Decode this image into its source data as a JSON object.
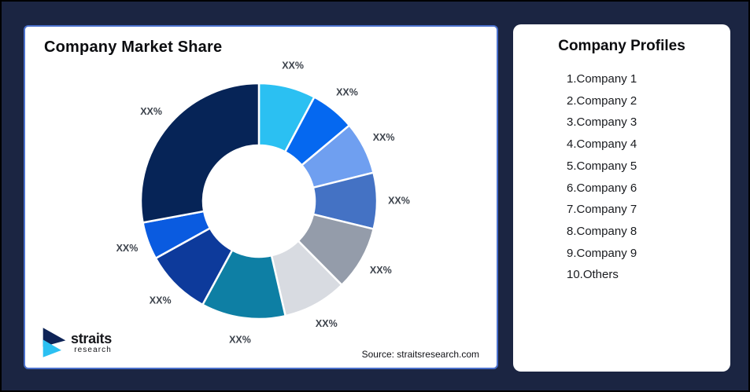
{
  "stage": {
    "background": "#1B2542",
    "outer_border_color": "#000000"
  },
  "chart_card": {
    "border_color": "#4A70CC",
    "title": "Company Market Share",
    "source_note": "Source: straitsresearch.com",
    "logo": {
      "brand": "straits",
      "brand_sub": "research",
      "icon": "straits-logo-chevrons-icon",
      "icon_colors": {
        "top_chevron": "#0E2356",
        "bottom_chevron": "#2BC0F2"
      }
    }
  },
  "chart_data": {
    "type": "pie",
    "subtype": "donut",
    "title": "Company Market Share",
    "direction": "clockwise",
    "start_angle_deg": 0,
    "inner_radius_ratio": 0.47,
    "data_label_text": "XX%",
    "note": "all slice value labels are placeholder text XX%; percent_est estimated from arc angles",
    "slices": [
      {
        "name": "Company 1",
        "label": "XX%",
        "angle_deg": 28.0,
        "percent_est": 7.8,
        "color": "#2BC0F2"
      },
      {
        "name": "Company 2",
        "label": "XX%",
        "angle_deg": 22.0,
        "percent_est": 6.1,
        "color": "#0568F0"
      },
      {
        "name": "Company 3",
        "label": "XX%",
        "angle_deg": 26.0,
        "percent_est": 7.2,
        "color": "#6F9FF0"
      },
      {
        "name": "Company 4",
        "label": "XX%",
        "angle_deg": 27.7,
        "percent_est": 7.7,
        "color": "#4472C4"
      },
      {
        "name": "Company 5",
        "label": "XX%",
        "angle_deg": 31.7,
        "percent_est": 8.8,
        "color": "#949CAA"
      },
      {
        "name": "Company 6",
        "label": "XX%",
        "angle_deg": 31.6,
        "percent_est": 8.8,
        "color": "#D8DBE1"
      },
      {
        "name": "Company 7",
        "label": "XX%",
        "angle_deg": 41.5,
        "percent_est": 11.5,
        "color": "#0E7FA4"
      },
      {
        "name": "Company 8",
        "label": "XX%",
        "angle_deg": 32.5,
        "percent_est": 9.0,
        "color": "#0D3A9B"
      },
      {
        "name": "Company 9",
        "label": "XX%",
        "angle_deg": 18.5,
        "percent_est": 5.1,
        "color": "#0A5BE0"
      },
      {
        "name": "Others",
        "label": "XX%",
        "angle_deg": 100.5,
        "percent_est": 28.0,
        "color": "#062457"
      }
    ]
  },
  "profiles_card": {
    "title": "Company Profiles",
    "items": [
      "1.Company 1",
      "2.Company 2",
      "3.Company 3",
      "4.Company 4",
      "5.Company 5",
      "6.Company 6",
      "7.Company 7",
      "8.Company 8",
      "9.Company 9",
      "10.Others"
    ]
  }
}
